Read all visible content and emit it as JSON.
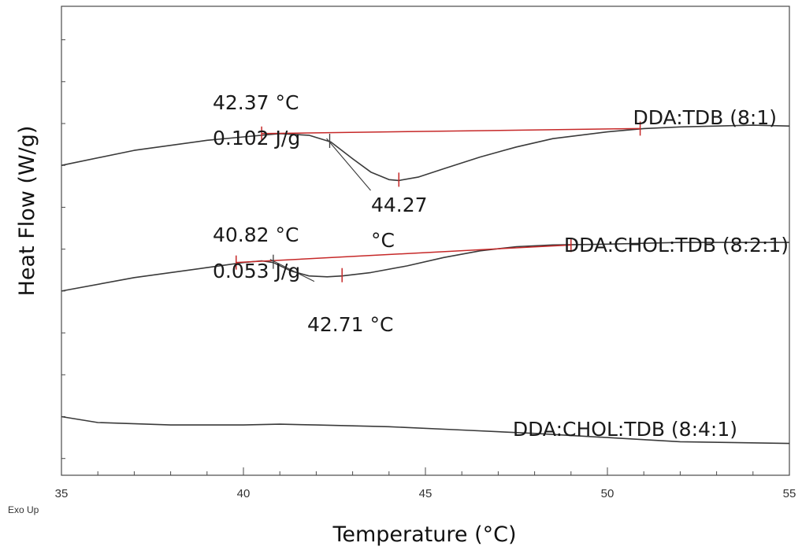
{
  "chart_data": {
    "type": "line",
    "xlabel": "Temperature (°C)",
    "ylabel": "Heat Flow (W/g)",
    "xlim": [
      35,
      55
    ],
    "x_ticks": [
      35,
      40,
      45,
      50,
      55
    ],
    "corner_label": "Exo Up",
    "series": [
      {
        "name": "DDA:TDB (8:1)",
        "x": [
          35,
          37,
          39,
          40,
          41,
          41.8,
          42.4,
          43,
          43.5,
          44,
          44.27,
          44.8,
          45.5,
          46.5,
          47.5,
          48.5,
          50,
          51,
          52,
          53,
          54,
          55
        ],
        "y": [
          6.9,
          7.08,
          7.2,
          7.24,
          7.28,
          7.26,
          7.18,
          6.98,
          6.82,
          6.73,
          6.72,
          6.76,
          6.86,
          7.0,
          7.12,
          7.22,
          7.3,
          7.34,
          7.36,
          7.37,
          7.38,
          7.37
        ],
        "baseline": {
          "x": [
            40.5,
            50.9
          ],
          "y": [
            7.28,
            7.34
          ]
        },
        "annotations": [
          {
            "x": 42.37,
            "lines": [
              "42.37 °C",
              "0.102 J/g"
            ]
          },
          {
            "x": 44.27,
            "lines": [
              "44.27",
              "°C"
            ]
          }
        ]
      },
      {
        "name": "DDA:CHOL:TDB (8:2:1)",
        "x": [
          35,
          37,
          39,
          40,
          40.5,
          40.82,
          41.3,
          41.8,
          42.3,
          42.71,
          43.5,
          44.5,
          45.5,
          46.5,
          47.5,
          48.5,
          50,
          52,
          55
        ],
        "y": [
          5.4,
          5.56,
          5.68,
          5.74,
          5.76,
          5.74,
          5.64,
          5.58,
          5.57,
          5.58,
          5.62,
          5.7,
          5.8,
          5.88,
          5.93,
          5.95,
          5.96,
          5.98,
          5.98
        ],
        "baseline": {
          "x": [
            39.8,
            49.0
          ],
          "y": [
            5.74,
            5.95
          ]
        },
        "annotations": [
          {
            "x": 40.82,
            "lines": [
              "40.82 °C",
              "0.053 J/g"
            ]
          },
          {
            "x": 42.71,
            "lines": [
              "42.71 °C"
            ]
          }
        ]
      },
      {
        "name": "DDA:CHOL:TDB (8:4:1)",
        "x": [
          35,
          36,
          38,
          40,
          41,
          42,
          44,
          46,
          48,
          50,
          52,
          55
        ],
        "y": [
          3.9,
          3.83,
          3.8,
          3.8,
          3.81,
          3.8,
          3.78,
          3.74,
          3.7,
          3.65,
          3.6,
          3.58
        ]
      }
    ],
    "ylim": [
      3.2,
      8.8
    ],
    "grid": false,
    "colors": {
      "trace": "#3a3a3a",
      "baseline": "#c62828",
      "frame": "#4a4a4a"
    }
  }
}
